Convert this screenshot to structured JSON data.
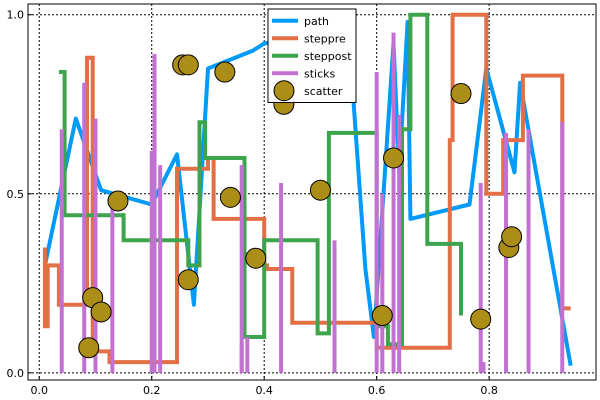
{
  "chart_data": {
    "type": "line",
    "title": "",
    "xlabel": "",
    "ylabel": "",
    "xlim": [
      -0.02,
      0.99
    ],
    "ylim": [
      -0.02,
      1.03
    ],
    "x_ticks": [
      0.0,
      0.2,
      0.4,
      0.6,
      0.8
    ],
    "x_tick_labels": [
      "0.0",
      "0.2",
      "0.4",
      "0.6",
      "0.8"
    ],
    "y_ticks": [
      0.0,
      0.5,
      1.0
    ],
    "y_tick_labels": [
      "0.0",
      "0.5",
      "1.0"
    ],
    "grid": "dotted",
    "legend_position": "top-center",
    "series": [
      {
        "name": "path",
        "kind": "line",
        "color": "#009af9",
        "x": [
          0.01,
          0.065,
          0.11,
          0.2,
          0.245,
          0.275,
          0.3,
          0.38,
          0.4,
          0.55,
          0.58,
          0.595,
          0.63,
          0.64,
          0.655,
          0.66,
          0.765,
          0.795,
          0.845,
          0.855,
          0.945
        ],
        "y": [
          0.3,
          0.71,
          0.51,
          0.47,
          0.61,
          0.19,
          0.85,
          0.9,
          0.92,
          0.95,
          0.29,
          0.1,
          0.92,
          0.56,
          0.98,
          0.43,
          0.47,
          0.85,
          0.56,
          0.81,
          0.02
        ]
      },
      {
        "name": "steppre",
        "kind": "step-pre",
        "color": "#e26f46",
        "x": [
          0.01,
          0.015,
          0.035,
          0.045,
          0.085,
          0.095,
          0.125,
          0.245,
          0.3,
          0.31,
          0.4,
          0.405,
          0.45,
          0.495,
          0.6,
          0.73,
          0.735,
          0.795,
          0.825,
          0.86,
          0.93,
          0.945
        ],
        "y": [
          0.35,
          0.13,
          0.3,
          0.19,
          0.19,
          0.88,
          0.06,
          0.03,
          0.57,
          0.6,
          0.43,
          0.3,
          0.29,
          0.14,
          0.14,
          0.07,
          0.65,
          1.0,
          0.5,
          0.65,
          0.83,
          0.18
        ]
      },
      {
        "name": "steppost",
        "kind": "step-post",
        "color": "#3da44d",
        "x": [
          0.035,
          0.045,
          0.15,
          0.265,
          0.285,
          0.295,
          0.36,
          0.365,
          0.4,
          0.495,
          0.515,
          0.6,
          0.62,
          0.645,
          0.66,
          0.69,
          0.75
        ],
        "y": [
          0.84,
          0.44,
          0.37,
          0.3,
          0.7,
          0.6,
          0.6,
          0.1,
          0.37,
          0.11,
          0.67,
          0.13,
          0.08,
          0.68,
          1.0,
          0.36,
          0.16
        ]
      },
      {
        "name": "sticks",
        "kind": "sticks",
        "color": "#c271d2",
        "x": [
          0.04,
          0.08,
          0.1,
          0.13,
          0.2,
          0.205,
          0.215,
          0.36,
          0.36,
          0.37,
          0.43,
          0.525,
          0.6,
          0.61,
          0.63,
          0.64,
          0.785,
          0.79,
          0.83,
          0.87,
          0.93
        ],
        "y": [
          0.68,
          0.81,
          0.71,
          0.49,
          0.62,
          0.89,
          0.58,
          0.08,
          0.58,
          0.1,
          0.53,
          0.37,
          0.84,
          0.5,
          0.95,
          0.72,
          0.53,
          0.03,
          0.67,
          0.68,
          0.7
        ]
      },
      {
        "name": "scatter",
        "kind": "scatter",
        "color": "#ac8d18",
        "x": [
          0.088,
          0.095,
          0.11,
          0.14,
          0.255,
          0.265,
          0.265,
          0.33,
          0.34,
          0.385,
          0.43,
          0.435,
          0.5,
          0.61,
          0.63,
          0.75,
          0.785,
          0.835,
          0.84
        ],
        "y": [
          0.07,
          0.21,
          0.17,
          0.48,
          0.86,
          0.86,
          0.26,
          0.84,
          0.49,
          0.32,
          0.8,
          0.75,
          0.51,
          0.16,
          0.6,
          0.78,
          0.15,
          0.35,
          0.38
        ]
      }
    ]
  }
}
